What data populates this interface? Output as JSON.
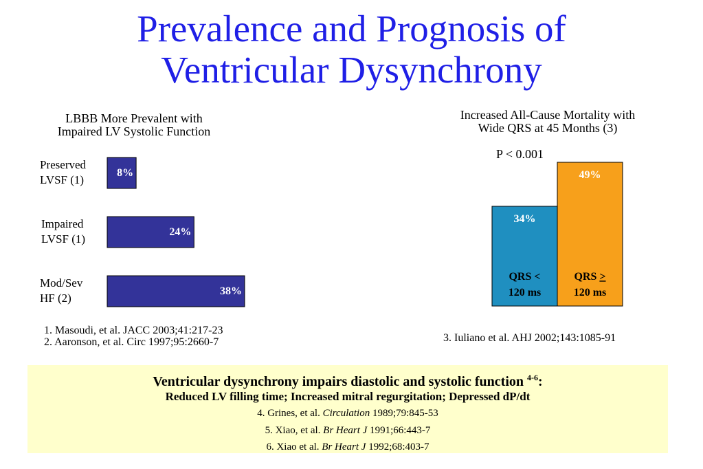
{
  "title_lines": [
    "Prevalence and Prognosis of",
    "Ventricular Dysynchrony"
  ],
  "left_panel": {
    "subtitle_lines": [
      "LBBB More Prevalent with",
      "Impaired LV Systolic Function"
    ],
    "references": [
      "1. Masoudi, et al. JACC 2003;41:217-23",
      "2. Aaronson, et al. Circ 1997;95:2660-7"
    ]
  },
  "right_panel": {
    "subtitle_lines": [
      "Increased All-Cause Mortality with",
      "Wide QRS at 45 Months (3)"
    ],
    "p_value": "P < 0.001",
    "reference": "3.  Iuliano et al. AHJ 2002;143:1085-91"
  },
  "chart_data": [
    {
      "type": "bar",
      "orientation": "horizontal",
      "title": "LBBB More Prevalent with Impaired LV Systolic Function",
      "categories": [
        [
          "Preserved",
          "LVSF (1)"
        ],
        [
          "Impaired",
          "LVSF (1)"
        ],
        [
          "Mod/Sev",
          "HF (2)"
        ]
      ],
      "values": [
        8,
        24,
        38
      ],
      "value_labels": [
        "8%",
        "24%",
        "38%"
      ],
      "xlim": [
        0,
        40
      ],
      "grid": false,
      "color": "#333399"
    },
    {
      "type": "bar",
      "orientation": "vertical",
      "title": "Increased All-Cause Mortality with Wide QRS at 45 Months (3)",
      "categories": [
        {
          "line1_text": "QRS <",
          "line1_suffix": "",
          "line2": "120 ms"
        },
        {
          "line1_text": "QRS ",
          "line1_suffix": ">",
          "line2": "120 ms"
        }
      ],
      "values": [
        34,
        49
      ],
      "value_labels": [
        "34%",
        "49%"
      ],
      "colors": [
        "#1f8fc0",
        "#f7a01b"
      ],
      "ylim": [
        0,
        49
      ],
      "grid": false
    }
  ],
  "info_box": {
    "heading": "Ventricular dysynchrony impairs diastolic and systolic function",
    "heading_sup": "4-6",
    "heading_suffix": ":",
    "subheading": "Reduced LV filling time; Increased mitral regurgitation; Depressed dP/dt",
    "citations": [
      {
        "pre": "4. Grines, et al. ",
        "journal": "Circulation",
        "post": " 1989;79:845-53"
      },
      {
        "pre": "5. Xiao, et al. ",
        "journal": "Br Heart J",
        "post": " 1991;66:443-7"
      },
      {
        "pre": "6. Xiao et al. ",
        "journal": "Br Heart J",
        "post": " 1992;68:403-7"
      }
    ]
  }
}
